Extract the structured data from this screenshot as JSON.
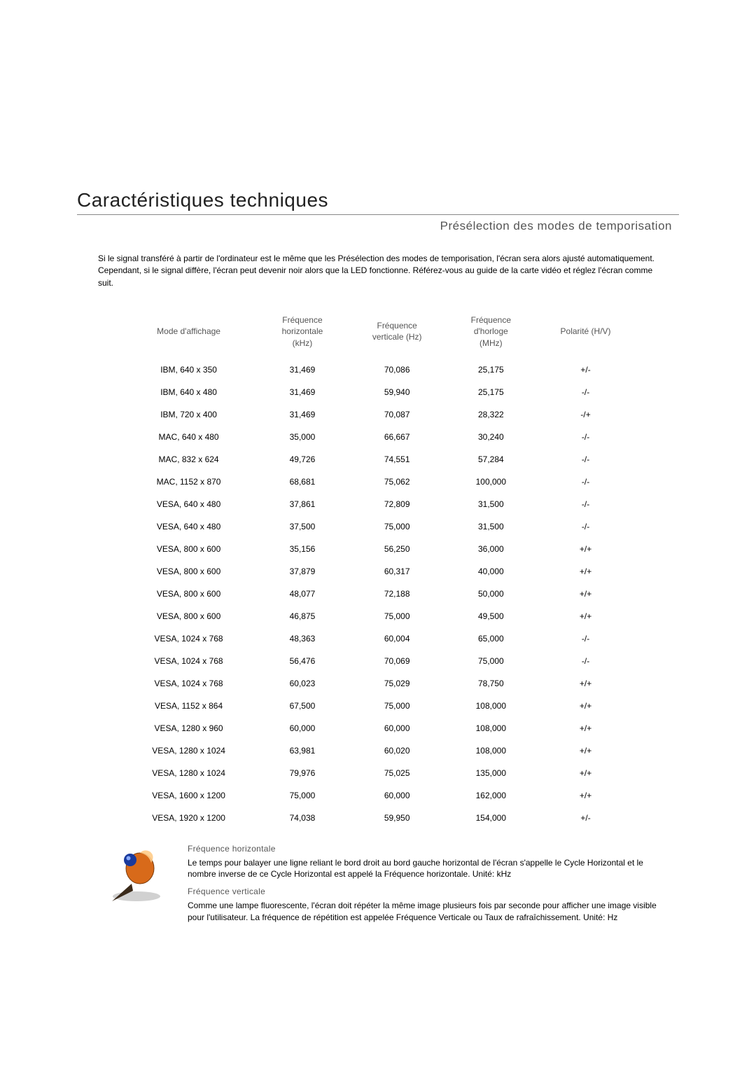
{
  "page_title": "Caractéristiques techniques",
  "subtitle": "Présélection des modes de temporisation",
  "intro": "Si le signal transféré à partir de l'ordinateur est le même que les Présélection des modes de temporisation, l'écran sera alors ajusté automatiquement. Cependant, si le signal diffère, l'écran peut devenir noir alors que la LED fonctionne. Référez-vous au guide de la carte vidéo et réglez l'écran comme suit.",
  "table": {
    "headers": {
      "mode": "Mode d'affichage",
      "hfreq": "Fréquence horizontale (kHz)",
      "vfreq": "Fréquence verticale (Hz)",
      "clock": "Fréquence d'horloge (MHz)",
      "polarity": "Polarité (H/V)"
    },
    "rows": [
      {
        "mode": "IBM, 640 x 350",
        "h": "31,469",
        "v": "70,086",
        "c": "25,175",
        "p": "+/-"
      },
      {
        "mode": "IBM, 640 x 480",
        "h": "31,469",
        "v": "59,940",
        "c": "25,175",
        "p": "-/-"
      },
      {
        "mode": "IBM, 720 x 400",
        "h": "31,469",
        "v": "70,087",
        "c": "28,322",
        "p": "-/+"
      },
      {
        "mode": "MAC, 640 x 480",
        "h": "35,000",
        "v": "66,667",
        "c": "30,240",
        "p": "-/-"
      },
      {
        "mode": "MAC, 832 x 624",
        "h": "49,726",
        "v": "74,551",
        "c": "57,284",
        "p": "-/-"
      },
      {
        "mode": "MAC, 1152 x 870",
        "h": "68,681",
        "v": "75,062",
        "c": "100,000",
        "p": "-/-"
      },
      {
        "mode": "VESA, 640 x 480",
        "h": "37,861",
        "v": "72,809",
        "c": "31,500",
        "p": "-/-"
      },
      {
        "mode": "VESA, 640 x 480",
        "h": "37,500",
        "v": "75,000",
        "c": "31,500",
        "p": "-/-"
      },
      {
        "mode": "VESA, 800 x 600",
        "h": "35,156",
        "v": "56,250",
        "c": "36,000",
        "p": "+/+"
      },
      {
        "mode": "VESA, 800 x 600",
        "h": "37,879",
        "v": "60,317",
        "c": "40,000",
        "p": "+/+"
      },
      {
        "mode": "VESA, 800 x 600",
        "h": "48,077",
        "v": "72,188",
        "c": "50,000",
        "p": "+/+"
      },
      {
        "mode": "VESA, 800 x 600",
        "h": "46,875",
        "v": "75,000",
        "c": "49,500",
        "p": "+/+"
      },
      {
        "mode": "VESA, 1024 x 768",
        "h": "48,363",
        "v": "60,004",
        "c": "65,000",
        "p": "-/-"
      },
      {
        "mode": "VESA, 1024 x 768",
        "h": "56,476",
        "v": "70,069",
        "c": "75,000",
        "p": "-/-"
      },
      {
        "mode": "VESA, 1024 x 768",
        "h": "60,023",
        "v": "75,029",
        "c": "78,750",
        "p": "+/+"
      },
      {
        "mode": "VESA, 1152 x 864",
        "h": "67,500",
        "v": "75,000",
        "c": "108,000",
        "p": "+/+"
      },
      {
        "mode": "VESA, 1280 x 960",
        "h": "60,000",
        "v": "60,000",
        "c": "108,000",
        "p": "+/+"
      },
      {
        "mode": "VESA, 1280 x 1024",
        "h": "63,981",
        "v": "60,020",
        "c": "108,000",
        "p": "+/+"
      },
      {
        "mode": "VESA, 1280 x 1024",
        "h": "79,976",
        "v": "75,025",
        "c": "135,000",
        "p": "+/+"
      },
      {
        "mode": "VESA, 1600 x 1200",
        "h": "75,000",
        "v": "60,000",
        "c": "162,000",
        "p": "+/+"
      },
      {
        "mode": "VESA, 1920 x 1200",
        "h": "74,038",
        "v": "59,950",
        "c": "154,000",
        "p": "+/-"
      }
    ]
  },
  "defs": {
    "hfreq_title": "Fréquence horizontale",
    "hfreq_body": "Le temps pour balayer une ligne reliant le bord droit au bord gauche horizontal de l'écran s'appelle le Cycle Horizontal et le nombre inverse de ce Cycle Horizontal est appelé la Fréquence horizontale. Unité: kHz",
    "vfreq_title": "Fréquence verticale",
    "vfreq_body": "Comme une lampe fluorescente, l'écran doit répéter la même image plusieurs fois par seconde pour afficher une image visible pour l'utilisateur. La fréquence de répétition est appelée Fréquence Verticale ou Taux de rafraîchissement. Unité: Hz"
  },
  "colors": {
    "title": "#222222",
    "subtitle": "#555555",
    "body": "#000000",
    "rule": "#888888",
    "icon_blue": "#1a3a9c",
    "icon_orange": "#d86a1a",
    "icon_dark": "#3a2a1a"
  }
}
